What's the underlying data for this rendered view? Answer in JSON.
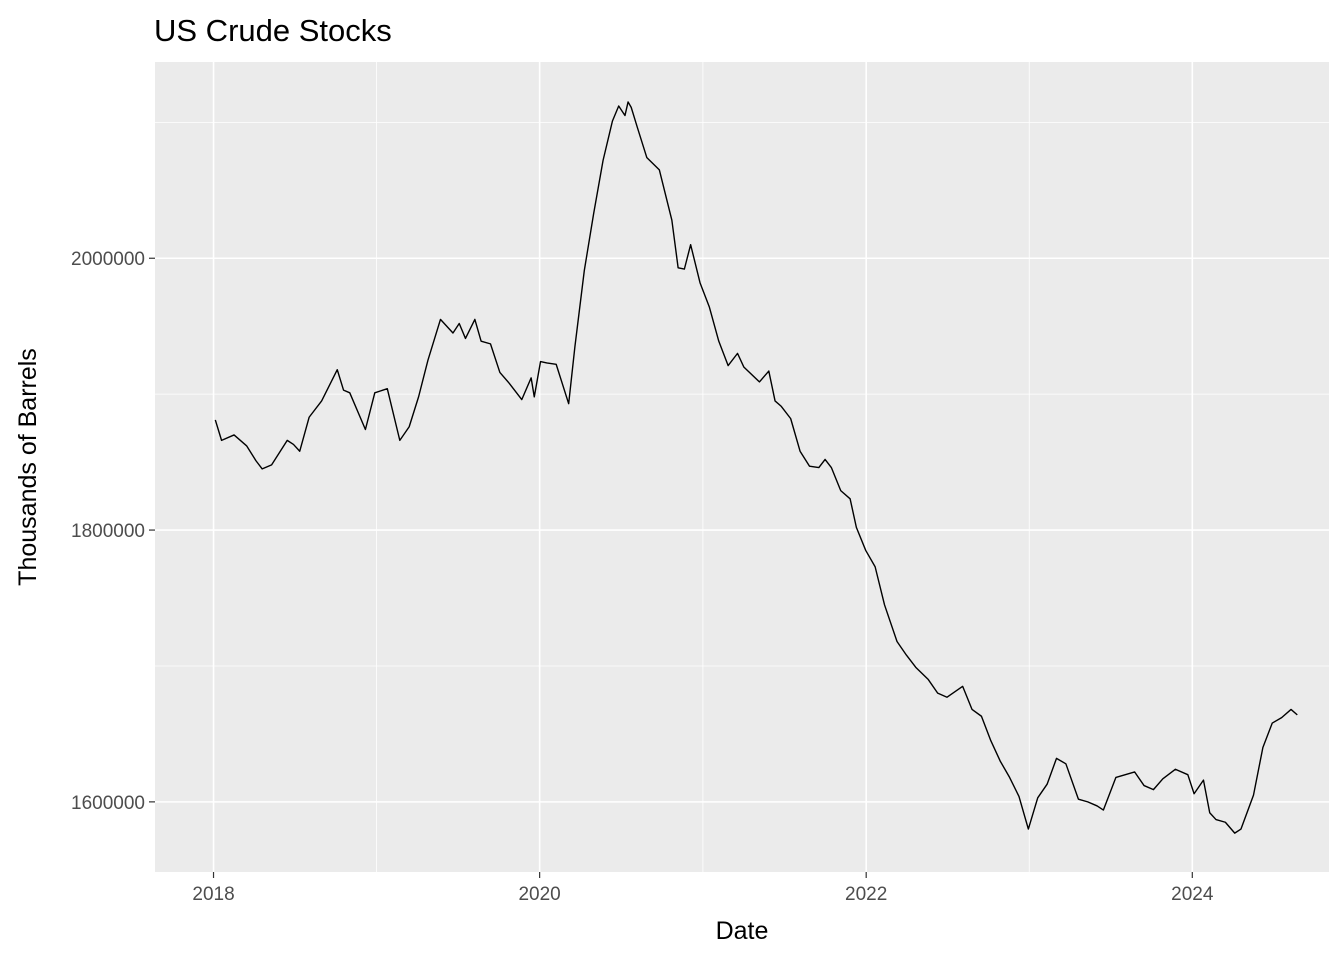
{
  "chart_data": {
    "type": "line",
    "title": "US Crude Stocks",
    "xlabel": "Date",
    "ylabel": "Thousands of Barrels",
    "xlim": [
      "2017-08-23",
      "2024-11-02"
    ],
    "ylim": [
      1548400,
      2144400
    ],
    "x_ticks": [
      {
        "value": "2018-01-01",
        "label": "2018"
      },
      {
        "value": "2020-01-01",
        "label": "2020"
      },
      {
        "value": "2022-01-01",
        "label": "2022"
      },
      {
        "value": "2024-01-01",
        "label": "2024"
      }
    ],
    "y_ticks": [
      {
        "value": 1600000,
        "label": "1600000"
      },
      {
        "value": 1800000,
        "label": "1800000"
      },
      {
        "value": 2000000,
        "label": "2000000"
      }
    ],
    "grid": true,
    "series": [
      {
        "color": "#000000",
        "x": [
          "2018-01-05",
          "2018-01-19",
          "2018-02-16",
          "2018-03-16",
          "2018-04-06",
          "2018-04-20",
          "2018-05-11",
          "2018-06-15",
          "2018-06-29",
          "2018-07-13",
          "2018-08-03",
          "2018-08-31",
          "2018-10-05",
          "2018-10-19",
          "2018-11-02",
          "2018-12-07",
          "2018-12-28",
          "2019-01-25",
          "2019-02-22",
          "2019-03-15",
          "2019-04-05",
          "2019-04-26",
          "2019-05-24",
          "2019-06-21",
          "2019-07-05",
          "2019-07-19",
          "2019-08-09",
          "2019-08-23",
          "2019-09-13",
          "2019-10-04",
          "2019-10-25",
          "2019-11-22",
          "2019-12-13",
          "2019-12-20",
          "2020-01-03",
          "2020-01-17",
          "2020-02-07",
          "2020-03-06",
          "2020-03-20",
          "2020-04-10",
          "2020-05-01",
          "2020-05-22",
          "2020-06-12",
          "2020-06-26",
          "2020-07-10",
          "2020-07-17",
          "2020-07-24",
          "2020-08-07",
          "2020-08-28",
          "2020-09-25",
          "2020-10-23",
          "2020-11-06",
          "2020-11-20",
          "2020-12-04",
          "2020-12-25",
          "2021-01-15",
          "2021-02-05",
          "2021-02-26",
          "2021-03-19",
          "2021-04-02",
          "2021-05-07",
          "2021-05-28",
          "2021-06-11",
          "2021-06-25",
          "2021-07-16",
          "2021-08-06",
          "2021-08-27",
          "2021-09-17",
          "2021-10-01",
          "2021-10-15",
          "2021-11-05",
          "2021-11-26",
          "2021-12-10",
          "2021-12-31",
          "2022-01-21",
          "2022-02-11",
          "2022-03-11",
          "2022-04-01",
          "2022-04-22",
          "2022-05-20",
          "2022-06-10",
          "2022-07-01",
          "2022-08-05",
          "2022-08-26",
          "2022-09-16",
          "2022-10-07",
          "2022-10-28",
          "2022-11-18",
          "2022-12-09",
          "2022-12-30",
          "2023-01-20",
          "2023-02-10",
          "2023-03-03",
          "2023-03-24",
          "2023-04-21",
          "2023-05-12",
          "2023-06-02",
          "2023-06-16",
          "2023-07-14",
          "2023-08-04",
          "2023-08-25",
          "2023-09-15",
          "2023-10-06",
          "2023-10-27",
          "2023-11-24",
          "2023-12-22",
          "2024-01-05",
          "2024-01-26",
          "2024-02-09",
          "2024-02-23",
          "2024-03-15",
          "2024-04-05",
          "2024-04-19",
          "2024-05-17",
          "2024-06-07",
          "2024-06-28",
          "2024-07-19",
          "2024-08-09",
          "2024-08-23"
        ],
        "values": [
          1881000,
          1866000,
          1870000,
          1862000,
          1851000,
          1845000,
          1848000,
          1866000,
          1863000,
          1858000,
          1883000,
          1895000,
          1918000,
          1903000,
          1901000,
          1874000,
          1901000,
          1904000,
          1866000,
          1876000,
          1898000,
          1925000,
          1955000,
          1945000,
          1952000,
          1941000,
          1955000,
          1939000,
          1937000,
          1916000,
          1908000,
          1896000,
          1912000,
          1898000,
          1924000,
          1923000,
          1922000,
          1893000,
          1935000,
          1991000,
          2033000,
          2072000,
          2101000,
          2112000,
          2105000,
          2115000,
          2111000,
          2096000,
          2074000,
          2065000,
          2028000,
          1993000,
          1992000,
          2010000,
          1982000,
          1964000,
          1939000,
          1921000,
          1930000,
          1920000,
          1909000,
          1917000,
          1895000,
          1891000,
          1882000,
          1858000,
          1847000,
          1846000,
          1852000,
          1846000,
          1829000,
          1823000,
          1802000,
          1785000,
          1773000,
          1745000,
          1718000,
          1708000,
          1699000,
          1690000,
          1680000,
          1677000,
          1685000,
          1668000,
          1663000,
          1645000,
          1630000,
          1618000,
          1604000,
          1580000,
          1603000,
          1613000,
          1632000,
          1628000,
          1602000,
          1600000,
          1597000,
          1594000,
          1618000,
          1620000,
          1622000,
          1612000,
          1609000,
          1617000,
          1624000,
          1620000,
          1606000,
          1616000,
          1592000,
          1587000,
          1585000,
          1577000,
          1580000,
          1605000,
          1640000,
          1658000,
          1662000,
          1668000,
          1664000
        ]
      }
    ]
  }
}
